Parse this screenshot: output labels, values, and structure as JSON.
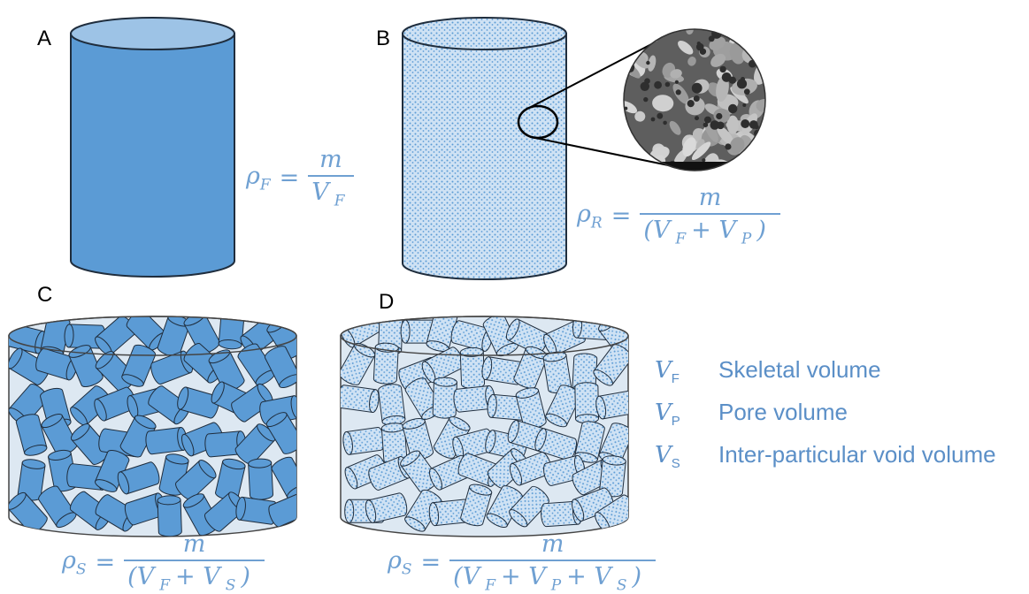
{
  "panels": [
    {
      "label": "A",
      "formula": {
        "lhs": "ρ",
        "lhs_sub": "F",
        "equals": "=",
        "numerator": "m",
        "denominator": [
          {
            "text": "V",
            "sub": "F"
          }
        ]
      }
    },
    {
      "label": "B",
      "formula": {
        "lhs": "ρ",
        "lhs_sub": "R",
        "equals": "=",
        "numerator": "m",
        "denominator": [
          {
            "text": "(V",
            "sub": "F"
          },
          {
            "text": "+ V",
            "sub": "P"
          },
          {
            "text": ")"
          }
        ]
      }
    },
    {
      "label": "C",
      "formula": {
        "lhs": "ρ",
        "lhs_sub": "S",
        "equals": "=",
        "numerator": "m",
        "denominator": [
          {
            "text": "(V",
            "sub": "F"
          },
          {
            "text": "+ V",
            "sub": "S"
          },
          {
            "text": ")"
          }
        ]
      }
    },
    {
      "label": "D",
      "formula": {
        "lhs": "ρ",
        "lhs_sub": "S",
        "equals": "=",
        "numerator": "m",
        "denominator": [
          {
            "text": "(V",
            "sub": "F"
          },
          {
            "text": "+ V",
            "sub": "P"
          },
          {
            "text": "+ V",
            "sub": "S"
          },
          {
            "text": ")"
          }
        ]
      }
    }
  ],
  "legend": [
    {
      "symbol": "V",
      "sub": "F",
      "label": "Skeletal volume"
    },
    {
      "symbol": "V",
      "sub": "P",
      "label": "Pore volume"
    },
    {
      "symbol": "V",
      "sub": "S",
      "label": "Inter-particular void volume"
    }
  ]
}
